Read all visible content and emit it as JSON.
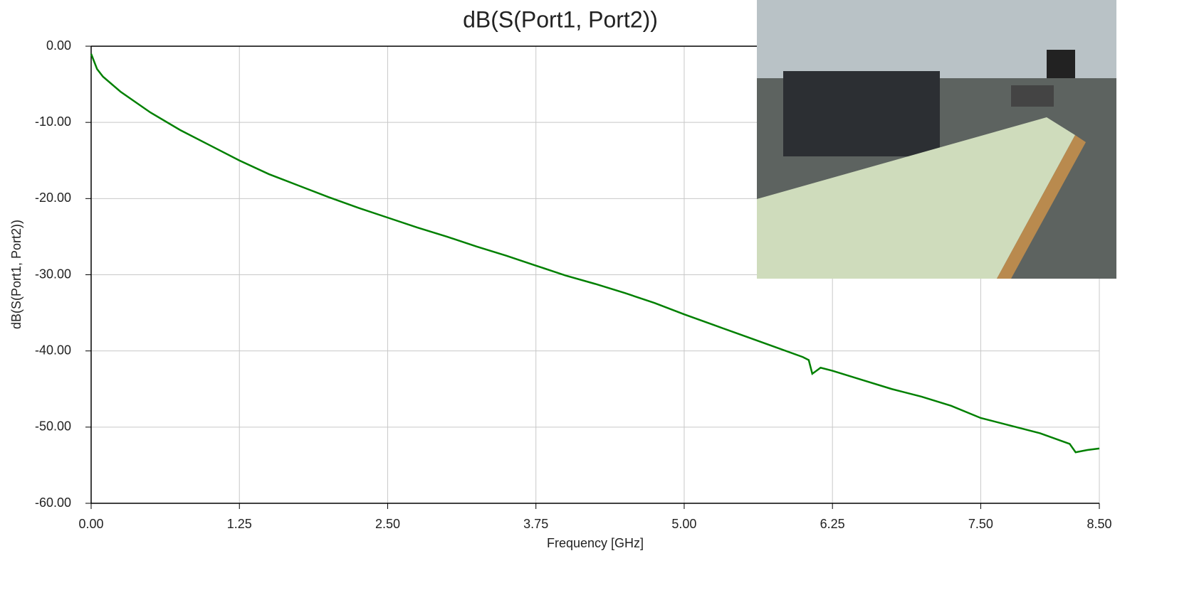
{
  "chart_data": {
    "type": "line",
    "title": "dB(S(Port1, Port2))",
    "x_label": "Frequency [GHz]",
    "y_label": "dB(S(Port1, Port2))",
    "x": [
      0,
      0.05,
      0.1,
      0.25,
      0.5,
      0.75,
      1.0,
      1.25,
      1.5,
      1.75,
      2.0,
      2.25,
      2.5,
      2.75,
      3.0,
      3.25,
      3.5,
      3.75,
      4.0,
      4.25,
      4.5,
      4.75,
      5.0,
      5.25,
      5.5,
      5.75,
      6.0,
      6.05,
      6.08,
      6.15,
      6.25,
      6.5,
      6.75,
      7.0,
      7.25,
      7.5,
      7.75,
      8.0,
      8.25,
      8.3,
      8.4,
      8.5
    ],
    "series": [
      {
        "name": "dB(S(Port1, Port2))",
        "color": "#008000",
        "values": [
          -1,
          -3,
          -4,
          -6,
          -8.7,
          -11,
          -13,
          -15,
          -16.8,
          -18.3,
          -19.8,
          -21.2,
          -22.5,
          -23.8,
          -25,
          -26.3,
          -27.5,
          -28.8,
          -30.1,
          -31.2,
          -32.4,
          -33.7,
          -35.2,
          -36.6,
          -38,
          -39.4,
          -40.8,
          -41.2,
          -43,
          -42.2,
          -42.6,
          -43.8,
          -45,
          -46,
          -47.2,
          -48.8,
          -49.8,
          -50.8,
          -52.2,
          -53.3,
          -53,
          -52.8
        ]
      }
    ],
    "xlim": [
      0,
      8.5
    ],
    "xticks": [
      {
        "value": 0,
        "label": "0.00"
      },
      {
        "value": 1.25,
        "label": "1.25"
      },
      {
        "value": 2.5,
        "label": "2.50"
      },
      {
        "value": 3.75,
        "label": "3.75"
      },
      {
        "value": 5,
        "label": "5.00"
      },
      {
        "value": 6.25,
        "label": "6.25"
      },
      {
        "value": 7.5,
        "label": "7.50"
      },
      {
        "value": 8.5,
        "label": "8.50"
      }
    ],
    "ylim": [
      -60,
      0
    ],
    "yticks": [
      {
        "value": -60,
        "label": "-60.00"
      },
      {
        "value": -50,
        "label": "-50.00"
      },
      {
        "value": -40,
        "label": "-40.00"
      },
      {
        "value": -30,
        "label": "-30.00"
      },
      {
        "value": -20,
        "label": "-20.00"
      },
      {
        "value": -10,
        "label": "-10.00"
      },
      {
        "value": 0,
        "label": "0.00"
      }
    ],
    "grid": true
  }
}
